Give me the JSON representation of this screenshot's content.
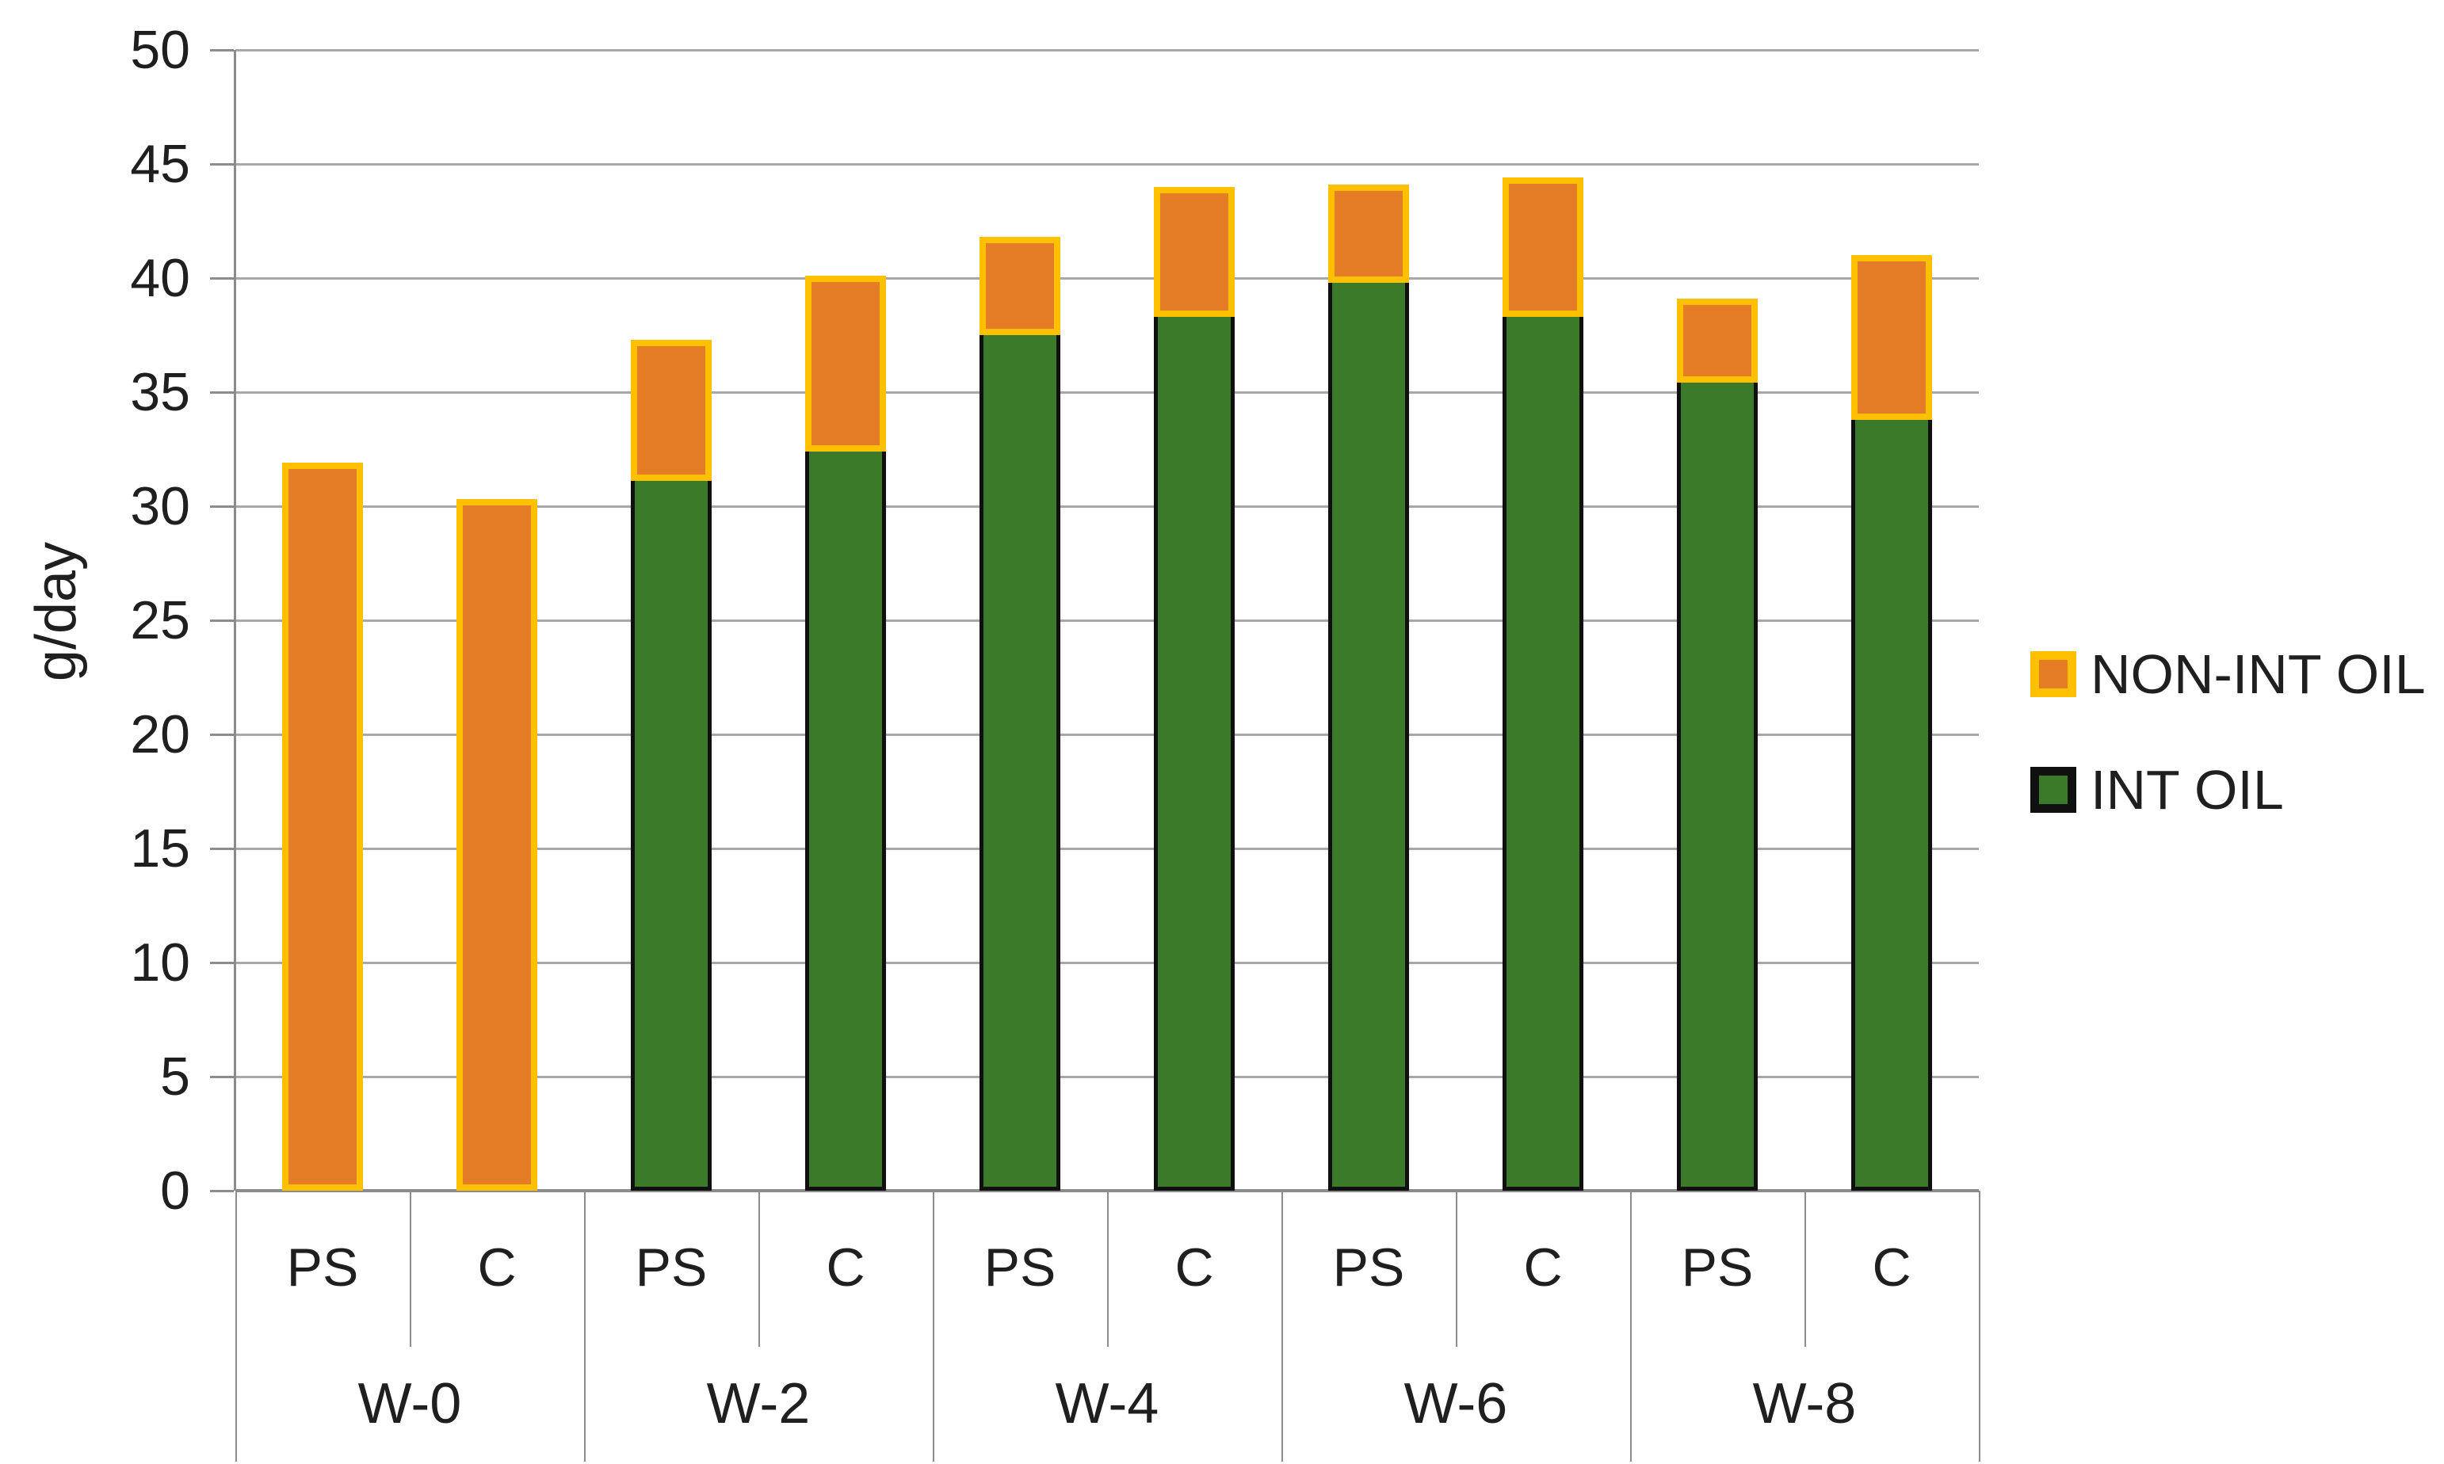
{
  "chart_data": {
    "type": "bar",
    "stacked": true,
    "title": "",
    "xlabel": "",
    "ylabel": "g/day",
    "ylim": [
      0,
      50
    ],
    "ytick_step": 5,
    "ytick_labels": [
      "0",
      "5",
      "10",
      "15",
      "20",
      "25",
      "30",
      "35",
      "40",
      "45",
      "50"
    ],
    "grid": true,
    "legend_position": "right",
    "groups": [
      "W-0",
      "W-2",
      "W-4",
      "W-6",
      "W-8"
    ],
    "bar_categories": [
      "PS",
      "C",
      "PS",
      "C",
      "PS",
      "C",
      "PS",
      "C",
      "PS",
      "C"
    ],
    "series": [
      {
        "name": "INT OIL",
        "fill_color": "#3a7a28",
        "border_color": "#101010",
        "values": [
          0,
          0,
          31.1,
          32.4,
          37.5,
          38.3,
          39.8,
          38.3,
          35.4,
          33.8
        ]
      },
      {
        "name": "NON-INT OIL",
        "fill_color": "#e57d26",
        "border_color": "#ffc000",
        "values": [
          31.9,
          30.3,
          6.2,
          7.7,
          4.3,
          5.7,
          4.3,
          6.1,
          3.7,
          7.2
        ]
      }
    ],
    "totals": [
      31.9,
      30.3,
      37.3,
      40.1,
      41.8,
      44.0,
      44.1,
      44.4,
      39.1,
      41.0
    ],
    "legend": [
      {
        "label": "NON-INT OIL",
        "fill_color": "#e57d26",
        "border_color": "#ffc000"
      },
      {
        "label": "INT OIL",
        "fill_color": "#3a7a28",
        "border_color": "#101010"
      }
    ],
    "colors": {
      "gridline": "#a8a8a8",
      "axis": "#8c8c8c",
      "text": "#1f1f1f",
      "background": "#ffffff"
    }
  }
}
